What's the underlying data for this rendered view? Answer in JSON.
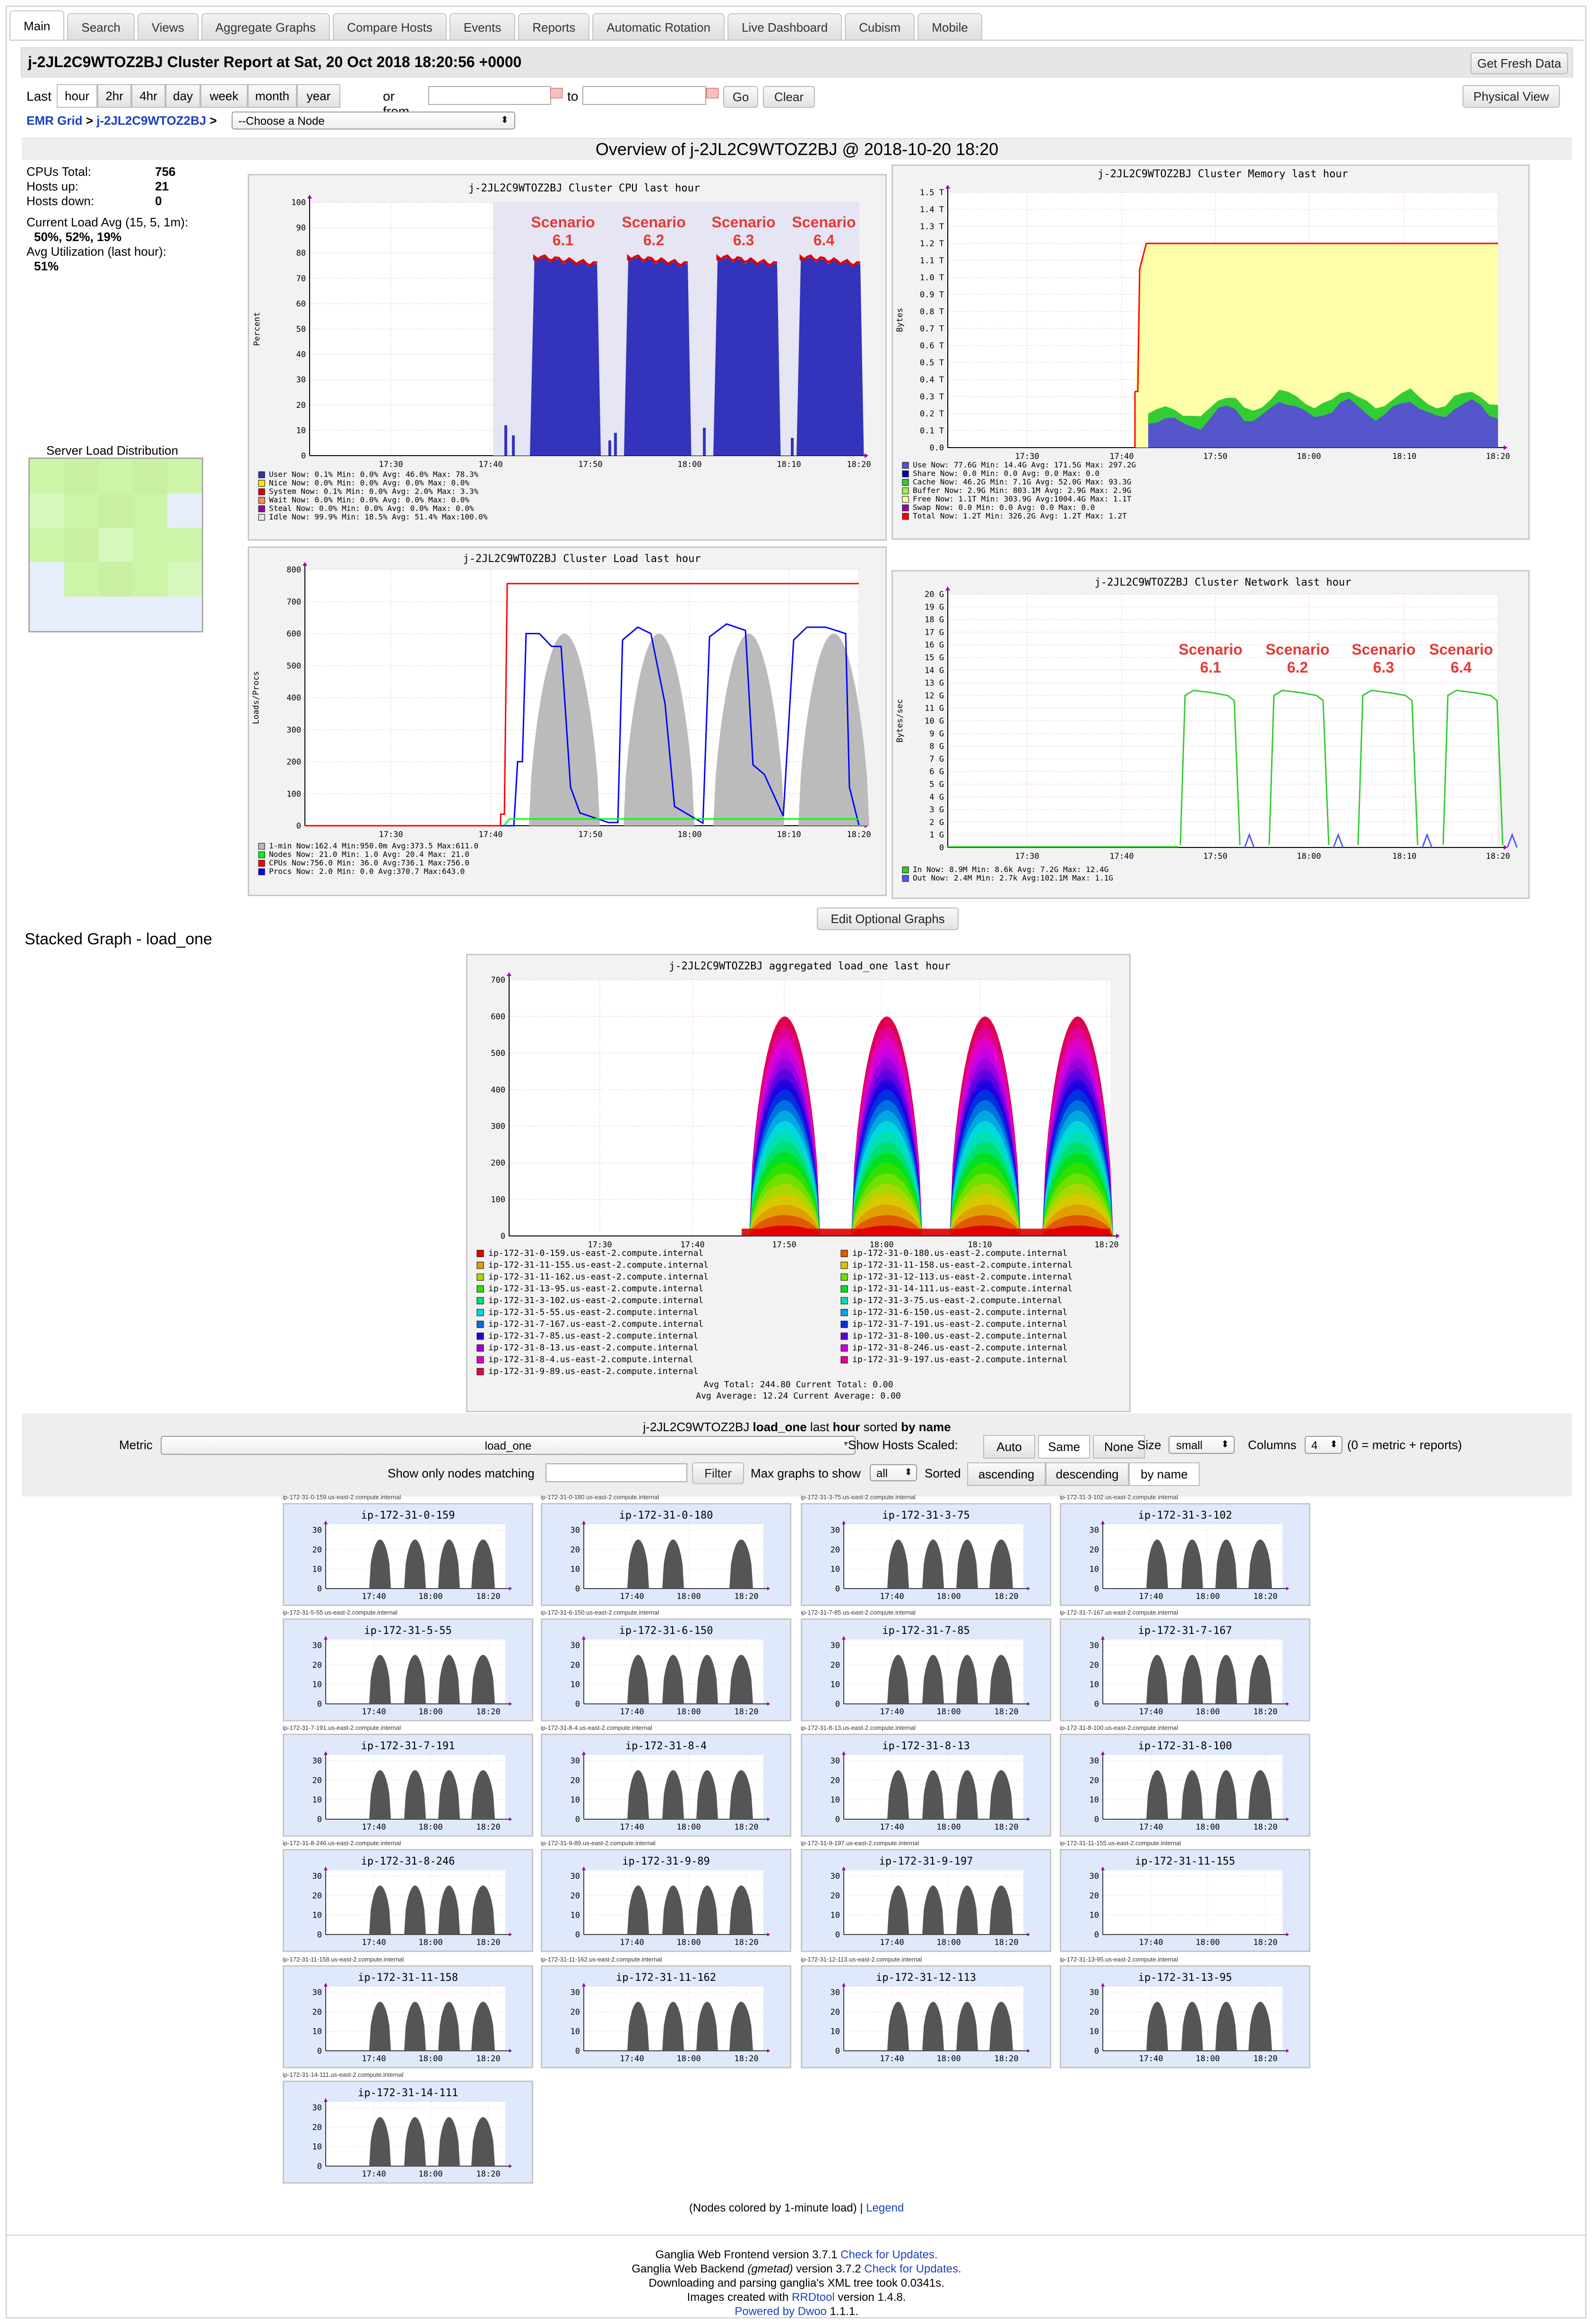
{
  "tabs": [
    "Main",
    "Search",
    "Views",
    "Aggregate Graphs",
    "Compare Hosts",
    "Events",
    "Reports",
    "Automatic Rotation",
    "Live Dashboard",
    "Cubism",
    "Mobile"
  ],
  "active_tab": "Main",
  "header": {
    "title": "j-2JL2C9WTOZ2BJ Cluster Report at Sat, 20 Oct 2018 18:20:56 +0000",
    "fresh_button": "Get Fresh Data",
    "physical_button": "Physical View"
  },
  "timerange": {
    "last_label": "Last",
    "ranges": [
      "hour",
      "2hr",
      "4hr",
      "day",
      "week",
      "month",
      "year"
    ],
    "active": "hour",
    "or_from": "or from",
    "to": "to",
    "go": "Go",
    "clear": "Clear"
  },
  "breadcrumb": {
    "grid": "EMR Grid",
    "sep": ">",
    "cluster": "j-2JL2C9WTOZ2BJ",
    "node_select": "--Choose a Node"
  },
  "overview_title": "Overview of j-2JL2C9WTOZ2BJ @ 2018-10-20 18:20",
  "stats": {
    "cpus_label": "CPUs Total:",
    "cpus": "756",
    "up_label": "Hosts up:",
    "up": "21",
    "down_label": "Hosts down:",
    "down": "0",
    "load_label": "Current Load Avg (15, 5, 1m):",
    "load": "50%, 52%, 19%",
    "util_label": "Avg Utilization (last hour):",
    "util": "51%",
    "dist_label": "Server Load Distribution"
  },
  "colors": {
    "user": "#3333bb",
    "nice": "#ffea00",
    "system": "#dd0000",
    "wait": "#ff8a60",
    "steal": "#990099",
    "idle": "#e2e2f2",
    "cpu_red": "#ff0000",
    "mem_use": "#5555cc",
    "mem_share": "#0000aa",
    "mem_cache": "#33cc33",
    "mem_buffer": "#99ff33",
    "mem_free": "#ffffaa",
    "mem_swap": "#9900aa",
    "mem_total": "#ff0000",
    "load1": "#bbbbbb",
    "nodes": "#00ff00",
    "cpus_line": "#ff0000",
    "procs": "#0000ff",
    "net_in": "#33cc33",
    "net_out": "#5555ff",
    "scenario": "#e53935",
    "small_fill": "#555555",
    "panel_bg": "#f2f2f2",
    "small_bg": "#dfe9fb"
  },
  "x_ticks": [
    "17:30",
    "17:40",
    "17:50",
    "18:00",
    "18:10",
    "18:20"
  ],
  "scenarios": [
    "Scenario\n6.1",
    "Scenario\n6.2",
    "Scenario\n6.3",
    "Scenario\n6.4"
  ],
  "cpu": {
    "title": "j-2JL2C9WTOZ2BJ Cluster CPU last hour",
    "ylabel": "Percent",
    "yticks": [
      "100",
      "90",
      "80",
      "70",
      "60",
      "50",
      "40",
      "30",
      "20",
      "10",
      "0"
    ],
    "legend": [
      {
        "key": "user",
        "text": "User   Now:  0.1%   Min:  0.0%   Avg: 46.0%   Max: 78.3%"
      },
      {
        "key": "nice",
        "text": "Nice   Now:  0.0%   Min:  0.0%   Avg:  0.0%   Max:  0.0%"
      },
      {
        "key": "system",
        "text": "System Now:  0.1%   Min:  0.0%   Avg:  2.0%   Max:  3.3%"
      },
      {
        "key": "wait",
        "text": "Wait   Now:  0.0%   Min:  0.0%   Avg:  0.0%   Max:  0.0%"
      },
      {
        "key": "steal",
        "text": "Steal  Now:  0.0%   Min:  0.0%   Avg:  0.0%   Max:  0.0%"
      },
      {
        "key": "idle",
        "text": "Idle   Now: 99.9%   Min: 18.5%   Avg: 51.4%   Max:100.0%"
      }
    ]
  },
  "memory": {
    "title": "j-2JL2C9WTOZ2BJ Cluster Memory last hour",
    "ylabel": "Bytes",
    "yticks": [
      "1.5 T",
      "1.4 T",
      "1.3 T",
      "1.2 T",
      "1.1 T",
      "1.0 T",
      "0.9 T",
      "0.8 T",
      "0.7 T",
      "0.6 T",
      "0.5 T",
      "0.4 T",
      "0.3 T",
      "0.2 T",
      "0.1 T",
      "0.0"
    ],
    "legend": [
      {
        "key": "mem_use",
        "text": "Use    Now:  77.6G   Min:  14.4G   Avg: 171.5G   Max: 297.2G"
      },
      {
        "key": "mem_share",
        "text": "Share  Now:   0.0    Min:   0.0    Avg:   0.0    Max:   0.0"
      },
      {
        "key": "mem_cache",
        "text": "Cache  Now:  46.2G   Min:   7.1G   Avg:  52.0G   Max:  93.3G"
      },
      {
        "key": "mem_buffer",
        "text": "Buffer Now:   2.9G   Min: 803.1M   Avg:   2.9G   Max:   2.9G"
      },
      {
        "key": "mem_free",
        "text": "Free   Now:   1.1T   Min: 303.9G   Avg:1004.4G   Max:   1.1T"
      },
      {
        "key": "mem_swap",
        "text": "Swap   Now:   0.0    Min:   0.0    Avg:   0.0    Max:   0.0"
      },
      {
        "key": "mem_total",
        "text": "Total  Now:   1.2T   Min: 326.2G   Avg:   1.2T   Max:   1.2T"
      }
    ]
  },
  "load": {
    "title": "j-2JL2C9WTOZ2BJ Cluster Load last hour",
    "ylabel": "Loads/Procs",
    "yticks": [
      "800",
      "700",
      "600",
      "500",
      "400",
      "300",
      "200",
      "100",
      "0"
    ],
    "legend": [
      {
        "key": "load1",
        "text": "1-min  Now:162.4    Min:950.0m    Avg:373.5    Max:611.0"
      },
      {
        "key": "nodes",
        "text": "Nodes  Now: 21.0    Min:  1.0     Avg: 20.4    Max: 21.0"
      },
      {
        "key": "cpus_line",
        "text": "CPUs   Now:756.0    Min: 36.0     Avg:736.1    Max:756.0"
      },
      {
        "key": "procs",
        "text": "Procs  Now:  2.0    Min:  0.0     Avg:370.7    Max:643.0"
      }
    ]
  },
  "network": {
    "title": "j-2JL2C9WTOZ2BJ Cluster Network last hour",
    "ylabel": "Bytes/sec",
    "yticks": [
      "20 G",
      "19 G",
      "18 G",
      "17 G",
      "16 G",
      "15 G",
      "14 G",
      "13 G",
      "12 G",
      "11 G",
      "10 G",
      "9 G",
      "8 G",
      "7 G",
      "6 G",
      "5 G",
      "4 G",
      "3 G",
      "2 G",
      "1 G",
      "0"
    ],
    "legend": [
      {
        "key": "net_in",
        "text": "In   Now:  8.9M   Min:  8.6k   Avg:  7.2G   Max: 12.4G"
      },
      {
        "key": "net_out",
        "text": "Out  Now:  2.4M   Min:  2.7k   Avg:102.1M   Max:  1.1G"
      }
    ]
  },
  "edit_button": "Edit Optional Graphs",
  "stacked": {
    "section": "Stacked Graph - load_one",
    "title": "j-2JL2C9WTOZ2BJ aggregated load_one last hour",
    "yticks": [
      "700",
      "600",
      "500",
      "400",
      "300",
      "200",
      "100",
      "0"
    ],
    "hosts": [
      "ip-172-31-0-159.us-east-2.compute.internal",
      "ip-172-31-0-180.us-east-2.compute.internal",
      "ip-172-31-11-155.us-east-2.compute.internal",
      "ip-172-31-11-158.us-east-2.compute.internal",
      "ip-172-31-11-162.us-east-2.compute.internal",
      "ip-172-31-12-113.us-east-2.compute.internal",
      "ip-172-31-13-95.us-east-2.compute.internal",
      "ip-172-31-14-111.us-east-2.compute.internal",
      "ip-172-31-3-102.us-east-2.compute.internal",
      "ip-172-31-3-75.us-east-2.compute.internal",
      "ip-172-31-5-55.us-east-2.compute.internal",
      "ip-172-31-6-150.us-east-2.compute.internal",
      "ip-172-31-7-167.us-east-2.compute.internal",
      "ip-172-31-7-191.us-east-2.compute.internal",
      "ip-172-31-7-85.us-east-2.compute.internal",
      "ip-172-31-8-100.us-east-2.compute.internal",
      "ip-172-31-8-13.us-east-2.compute.internal",
      "ip-172-31-8-246.us-east-2.compute.internal",
      "ip-172-31-8-4.us-east-2.compute.internal",
      "ip-172-31-9-197.us-east-2.compute.internal",
      "ip-172-31-9-89.us-east-2.compute.internal"
    ],
    "host_colors": [
      "#e00000",
      "#e05a00",
      "#e0a000",
      "#d8c800",
      "#a8d800",
      "#70e000",
      "#30e000",
      "#00e020",
      "#00e070",
      "#00e0b0",
      "#00d8e0",
      "#00a8e0",
      "#0070e0",
      "#0030e0",
      "#2000e0",
      "#6000e0",
      "#9800e0",
      "#c800e0",
      "#e000c8",
      "#e00090",
      "#e00050"
    ],
    "summary1": "Avg Total: 244.80   Current Total:   0.00",
    "summary2": "Avg Average: 12.24   Current Average:   0.00"
  },
  "controls": {
    "heading_pre": "j-2JL2C9WTOZ2BJ ",
    "heading_metric": "load_one",
    "heading_mid": " last ",
    "heading_range": "hour",
    "heading_post": " sorted ",
    "heading_sort": "by name",
    "metric_label": "Metric",
    "metric_value": "load_one",
    "scaled_label": "Show Hosts Scaled:",
    "scaled_opts": [
      "Auto",
      "Same",
      "None"
    ],
    "scaled_active": "Same",
    "size_label": "Size",
    "size_value": "small",
    "columns_label": "Columns",
    "columns_value": "4",
    "columns_note": "(0 = metric + reports)",
    "match_label": "Show only nodes matching",
    "filter_button": "Filter",
    "max_label": "Max graphs to show",
    "max_value": "all",
    "sorted_label": "Sorted",
    "sort_opts": [
      "ascending",
      "descending",
      "by name"
    ],
    "sort_active": "by name"
  },
  "nodes": [
    {
      "name": "ip-172-31-0-159",
      "fqdn": "ip-172-31-0-159.us-east-2.compute.internal",
      "bursts": [
        1,
        1,
        1
      ]
    },
    {
      "name": "ip-172-31-0-180",
      "fqdn": "ip-172-31-0-180.us-east-2.compute.internal",
      "bursts": [
        1,
        0,
        1
      ]
    },
    {
      "name": "ip-172-31-3-75",
      "fqdn": "ip-172-31-3-75.us-east-2.compute.internal",
      "bursts": [
        1,
        1,
        1
      ]
    },
    {
      "name": "ip-172-31-3-102",
      "fqdn": "ip-172-31-3-102.us-east-2.compute.internal",
      "bursts": [
        1,
        1,
        1
      ]
    },
    {
      "name": "ip-172-31-5-55",
      "fqdn": "ip-172-31-5-55.us-east-2.compute.internal",
      "bursts": [
        1,
        1,
        1
      ]
    },
    {
      "name": "ip-172-31-6-150",
      "fqdn": "ip-172-31-6-150.us-east-2.compute.internal",
      "bursts": [
        1,
        1,
        1
      ]
    },
    {
      "name": "ip-172-31-7-85",
      "fqdn": "ip-172-31-7-85.us-east-2.compute.internal",
      "bursts": [
        1,
        1,
        1
      ]
    },
    {
      "name": "ip-172-31-7-167",
      "fqdn": "ip-172-31-7-167.us-east-2.compute.internal",
      "bursts": [
        1,
        1,
        1
      ]
    },
    {
      "name": "ip-172-31-7-191",
      "fqdn": "ip-172-31-7-191.us-east-2.compute.internal",
      "bursts": [
        1,
        1,
        1
      ]
    },
    {
      "name": "ip-172-31-8-4",
      "fqdn": "ip-172-31-8-4.us-east-2.compute.internal",
      "bursts": [
        1,
        1,
        1
      ]
    },
    {
      "name": "ip-172-31-8-13",
      "fqdn": "ip-172-31-8-13.us-east-2.compute.internal",
      "bursts": [
        1,
        1,
        1
      ]
    },
    {
      "name": "ip-172-31-8-100",
      "fqdn": "ip-172-31-8-100.us-east-2.compute.internal",
      "bursts": [
        1,
        1,
        1
      ]
    },
    {
      "name": "ip-172-31-8-246",
      "fqdn": "ip-172-31-8-246.us-east-2.compute.internal",
      "bursts": [
        1,
        1,
        1
      ]
    },
    {
      "name": "ip-172-31-9-89",
      "fqdn": "ip-172-31-9-89.us-east-2.compute.internal",
      "bursts": [
        1,
        1,
        1
      ]
    },
    {
      "name": "ip-172-31-9-197",
      "fqdn": "ip-172-31-9-197.us-east-2.compute.internal",
      "bursts": [
        1,
        1,
        1
      ]
    },
    {
      "name": "ip-172-31-11-155",
      "fqdn": "ip-172-31-11-155.us-east-2.compute.internal",
      "bursts": [
        0,
        0,
        0
      ]
    },
    {
      "name": "ip-172-31-11-158",
      "fqdn": "ip-172-31-11-158.us-east-2.compute.internal",
      "bursts": [
        1,
        1,
        1
      ]
    },
    {
      "name": "ip-172-31-11-162",
      "fqdn": "ip-172-31-11-162.us-east-2.compute.internal",
      "bursts": [
        1,
        1,
        1
      ]
    },
    {
      "name": "ip-172-31-12-113",
      "fqdn": "ip-172-31-12-113.us-east-2.compute.internal",
      "bursts": [
        1,
        1,
        1
      ]
    },
    {
      "name": "ip-172-31-13-95",
      "fqdn": "ip-172-31-13-95.us-east-2.compute.internal",
      "bursts": [
        1,
        1,
        1
      ]
    },
    {
      "name": "ip-172-31-14-111",
      "fqdn": "ip-172-31-14-111.us-east-2.compute.internal",
      "bursts": [
        1,
        1,
        1
      ]
    }
  ],
  "small_yticks": [
    "30",
    "20",
    "10",
    "0"
  ],
  "small_xticks": [
    "17:40",
    "18:00",
    "18:20"
  ],
  "legend_note": {
    "pre": "(Nodes colored by 1-minute load) | ",
    "link": "Legend"
  },
  "footer": {
    "l1_pre": "Ganglia Web Frontend version 3.7.1 ",
    "l1_link": "Check for Updates.",
    "l2_pre": "Ganglia Web Backend ",
    "l2_em": "(gmetad)",
    "l2_mid": " version 3.7.2 ",
    "l2_link": "Check for Updates.",
    "l3": "Downloading and parsing ganglia's XML tree took 0.0341s.",
    "l4_pre": "Images created with ",
    "l4_link": "RRDtool",
    "l4_post": " version 1.4.8.",
    "l5_link": "Powered by Dwoo",
    "l5_post": " 1.1.1."
  }
}
